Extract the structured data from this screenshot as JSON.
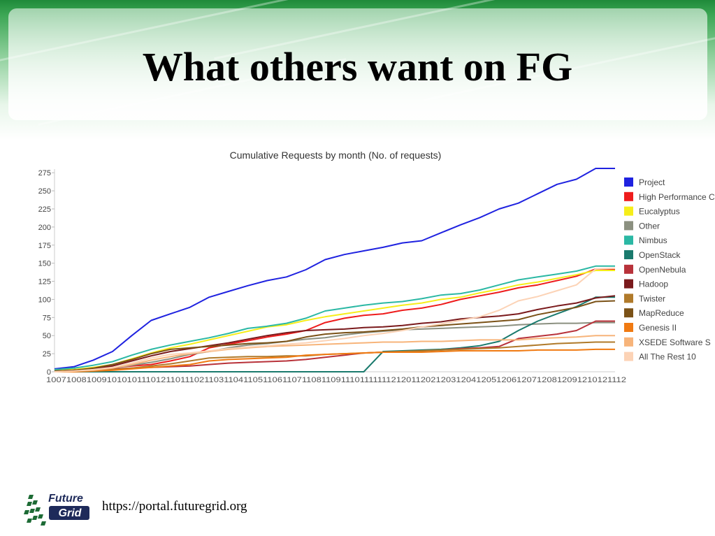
{
  "slide": {
    "title": "What others want on FG",
    "url": "https://portal.futuregrid.org",
    "logo_line1": "Future",
    "logo_line2": "Grid"
  },
  "chart_data": {
    "type": "line",
    "title": "Cumulative Requests by month (No. of requests)",
    "xlabel": "",
    "ylabel": "",
    "ylim": [
      0,
      280
    ],
    "yticks": [
      0,
      25,
      50,
      75,
      100,
      125,
      150,
      175,
      200,
      225,
      250,
      275
    ],
    "x_tick_text": "1007100810091010101110121101110211031104110511061107110811091110111111121201120212031204120512061207120812091210121112",
    "grid": false,
    "legend_position": "right",
    "x": [
      "1007",
      "1008",
      "1009",
      "1010",
      "1011",
      "1012",
      "1101",
      "1102",
      "1103",
      "1104",
      "1105",
      "1106",
      "1107",
      "1108",
      "1109",
      "1110",
      "1111",
      "1112",
      "1201",
      "1202",
      "1203",
      "1204",
      "1205",
      "1206",
      "1207",
      "1208",
      "1209",
      "1210",
      "1211",
      "1212"
    ],
    "series": [
      {
        "name": "Project",
        "color": "#1f22e0",
        "values": [
          4,
          7,
          16,
          28,
          50,
          71,
          80,
          89,
          103,
          111,
          119,
          126,
          131,
          141,
          155,
          162,
          167,
          172,
          178,
          181,
          192,
          203,
          213,
          225,
          233,
          246,
          259,
          266,
          281,
          281
        ]
      },
      {
        "name": "High Performance C",
        "color": "#ee1c1c",
        "values": [
          2,
          3,
          5,
          6,
          8,
          10,
          15,
          21,
          33,
          38,
          43,
          48,
          52,
          57,
          68,
          74,
          78,
          80,
          85,
          88,
          93,
          100,
          105,
          110,
          116,
          120,
          126,
          132,
          142,
          141
        ]
      },
      {
        "name": "Eucalyptus",
        "color": "#f6ee1a",
        "values": [
          2,
          3,
          6,
          10,
          18,
          26,
          33,
          38,
          44,
          50,
          56,
          62,
          65,
          71,
          76,
          80,
          84,
          88,
          92,
          95,
          100,
          103,
          109,
          114,
          120,
          124,
          129,
          134,
          140,
          140
        ]
      },
      {
        "name": "Other",
        "color": "#8b9080",
        "values": [
          1,
          2,
          3,
          5,
          9,
          13,
          18,
          24,
          28,
          33,
          37,
          39,
          42,
          45,
          47,
          51,
          54,
          56,
          58,
          59,
          60,
          61,
          62,
          63,
          65,
          66,
          67,
          67,
          68,
          68
        ]
      },
      {
        "name": "Nimbus",
        "color": "#2bb8a4",
        "values": [
          3,
          5,
          9,
          14,
          23,
          31,
          37,
          42,
          47,
          53,
          60,
          63,
          67,
          74,
          84,
          88,
          92,
          95,
          97,
          101,
          106,
          108,
          113,
          120,
          127,
          131,
          135,
          139,
          146,
          146
        ]
      },
      {
        "name": "OpenStack",
        "color": "#1a7a6d",
        "values": [
          0,
          0,
          0,
          0,
          0,
          0,
          0,
          0,
          0,
          0,
          0,
          0,
          0,
          0,
          0,
          0,
          0,
          28,
          29,
          30,
          31,
          33,
          36,
          42,
          57,
          70,
          80,
          90,
          103,
          103
        ]
      },
      {
        "name": "OpenNebula",
        "color": "#b8323a",
        "values": [
          1,
          2,
          3,
          4,
          5,
          6,
          7,
          8,
          10,
          12,
          13,
          14,
          15,
          17,
          20,
          23,
          26,
          27,
          28,
          29,
          30,
          32,
          33,
          35,
          46,
          49,
          52,
          57,
          70,
          70
        ]
      },
      {
        "name": "Hadoop",
        "color": "#7a1a1c",
        "values": [
          1,
          2,
          4,
          8,
          15,
          22,
          28,
          32,
          36,
          40,
          45,
          50,
          54,
          57,
          58,
          59,
          61,
          62,
          64,
          67,
          69,
          73,
          75,
          77,
          80,
          86,
          91,
          95,
          102,
          105
        ]
      },
      {
        "name": "Twister",
        "color": "#b07a2a",
        "values": [
          0,
          1,
          2,
          3,
          5,
          8,
          11,
          15,
          19,
          20,
          21,
          21,
          22,
          22,
          24,
          25,
          26,
          27,
          28,
          29,
          30,
          31,
          32,
          33,
          35,
          37,
          39,
          40,
          41,
          41
        ]
      },
      {
        "name": "MapReduce",
        "color": "#7b5217",
        "values": [
          1,
          2,
          5,
          10,
          17,
          25,
          31,
          33,
          35,
          37,
          39,
          40,
          42,
          48,
          52,
          54,
          55,
          57,
          59,
          62,
          64,
          66,
          68,
          70,
          72,
          79,
          84,
          89,
          97,
          98
        ]
      },
      {
        "name": "Genesis II",
        "color": "#f07a12",
        "values": [
          0,
          0,
          1,
          2,
          4,
          6,
          8,
          10,
          15,
          17,
          18,
          19,
          20,
          23,
          24,
          25,
          26,
          27,
          27,
          27,
          28,
          29,
          29,
          29,
          29,
          30,
          30,
          30,
          31,
          31
        ]
      },
      {
        "name": "XSEDE Software S",
        "color": "#f7b47a",
        "values": [
          0,
          1,
          2,
          5,
          10,
          16,
          21,
          25,
          28,
          31,
          33,
          35,
          36,
          37,
          38,
          39,
          40,
          41,
          41,
          42,
          42,
          43,
          44,
          44,
          44,
          46,
          47,
          48,
          50,
          50
        ]
      },
      {
        "name": "All The Rest 10",
        "color": "#fcd3b6",
        "values": [
          0,
          1,
          3,
          6,
          12,
          19,
          24,
          26,
          29,
          32,
          34,
          36,
          38,
          40,
          43,
          46,
          50,
          53,
          57,
          62,
          66,
          71,
          76,
          85,
          98,
          104,
          112,
          120,
          142,
          143
        ]
      }
    ]
  }
}
